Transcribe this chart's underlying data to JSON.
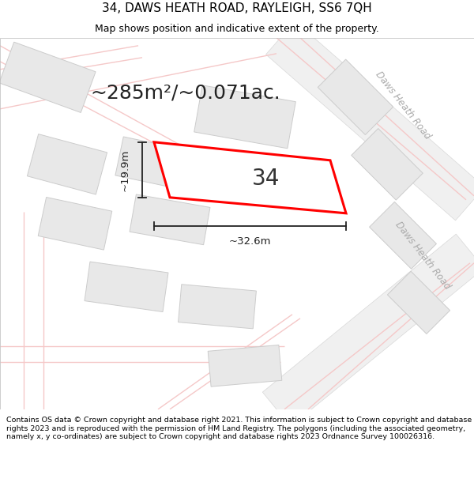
{
  "title": "34, DAWS HEATH ROAD, RAYLEIGH, SS6 7QH",
  "subtitle": "Map shows position and indicative extent of the property.",
  "footer": "Contains OS data © Crown copyright and database right 2021. This information is subject to Crown copyright and database rights 2023 and is reproduced with the permission of HM Land Registry. The polygons (including the associated geometry, namely x, y co-ordinates) are subject to Crown copyright and database rights 2023 Ordnance Survey 100026316.",
  "area_label": "~285m²/~0.071ac.",
  "width_label": "~32.6m",
  "height_label": "~19.9m",
  "number_label": "34",
  "bg_color": "#ffffff",
  "map_bg": "#ffffff",
  "road_color": "#f5c8c8",
  "building_fill": "#e8e8e8",
  "building_edge": "#cccccc",
  "road_band_fill": "#f0f0f0",
  "road_band_edge": "#dddddd",
  "highlight_fill": "#ffffff",
  "highlight_edge": "#ff0000",
  "road_text_color": "#aaaaaa",
  "dim_line_color": "#222222",
  "title_fontsize": 11,
  "subtitle_fontsize": 9,
  "footer_fontsize": 6.8,
  "area_label_fontsize": 18,
  "number_label_fontsize": 20,
  "dim_label_fontsize": 9.5
}
